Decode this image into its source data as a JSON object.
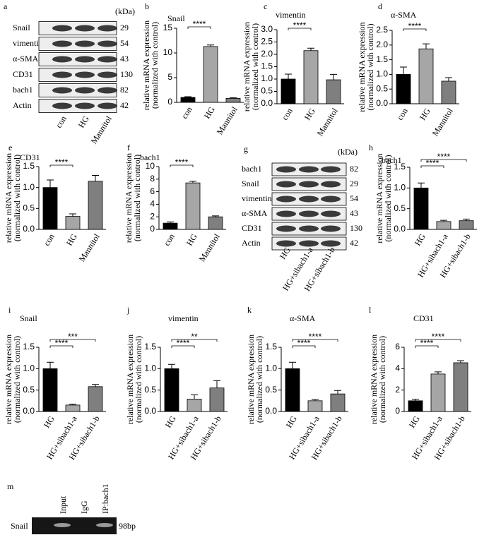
{
  "chart_data": [
    {
      "type": "bar",
      "panel": "b",
      "title": "Snail",
      "ylabel": [
        "relative mRNA expression",
        "(normalized with control)"
      ],
      "categories": [
        "con",
        "HG",
        "Mannitol"
      ],
      "values": [
        1.0,
        11.3,
        0.8
      ],
      "errors": [
        0.15,
        0.3,
        0.15
      ],
      "colors": [
        "#000000",
        "#a6a6a6",
        "#7f7f7f"
      ],
      "ylim": [
        0,
        15
      ],
      "yticks": [
        0,
        5,
        10,
        15
      ],
      "annotations": [
        "****"
      ]
    },
    {
      "type": "bar",
      "panel": "c",
      "title": "vimentin",
      "ylabel": [
        "relative mRNA expression",
        "(normalized with control)"
      ],
      "categories": [
        "con",
        "HG",
        "Mannitol"
      ],
      "values": [
        1.0,
        2.15,
        0.97
      ],
      "errors": [
        0.2,
        0.1,
        0.22
      ],
      "colors": [
        "#000000",
        "#a6a6a6",
        "#7f7f7f"
      ],
      "ylim": [
        0,
        3
      ],
      "yticks": [
        {
          "value": 0,
          "label": "0.0"
        },
        0.5,
        {
          "value": 1,
          "label": "1.0"
        },
        1.5,
        {
          "value": 2,
          "label": "2.0"
        },
        2.5,
        {
          "value": 3,
          "label": "3.0"
        }
      ],
      "annotations": [
        "****"
      ]
    },
    {
      "type": "bar",
      "panel": "d",
      "title": "α-SMA",
      "ylabel": [
        "relative mRNA expression",
        "(normalized with control)"
      ],
      "categories": [
        "con",
        "HG",
        "Mannitol"
      ],
      "values": [
        1.0,
        1.87,
        0.77
      ],
      "errors": [
        0.25,
        0.17,
        0.12
      ],
      "colors": [
        "#000000",
        "#a6a6a6",
        "#7f7f7f"
      ],
      "ylim": [
        0,
        2.5
      ],
      "yticks": [
        {
          "value": 0,
          "label": "0.0"
        },
        0.5,
        {
          "value": 1,
          "label": "1.0"
        },
        1.5,
        {
          "value": 2,
          "label": "2.0"
        },
        2.5
      ],
      "annotations": [
        "****"
      ]
    },
    {
      "type": "bar",
      "panel": "e",
      "title": "CD31",
      "ylabel": [
        "relative mRNA expression",
        "(normalized with control)"
      ],
      "categories": [
        "con",
        "HG",
        "Mannitol"
      ],
      "values": [
        1.0,
        0.31,
        1.15
      ],
      "errors": [
        0.18,
        0.06,
        0.14
      ],
      "colors": [
        "#000000",
        "#a6a6a6",
        "#7f7f7f"
      ],
      "ylim": [
        0,
        1.5
      ],
      "yticks": [
        {
          "value": 0,
          "label": "0.0"
        },
        0.5,
        {
          "value": 1,
          "label": "1.0"
        },
        1.5
      ],
      "annotations": [
        "****"
      ]
    },
    {
      "type": "bar",
      "panel": "f",
      "title": "bach1",
      "ylabel": [
        "relative mRNA expression",
        "(normalized with control)"
      ],
      "categories": [
        "con",
        "HG",
        "Mannitol"
      ],
      "values": [
        1.0,
        7.4,
        2.0
      ],
      "errors": [
        0.2,
        0.25,
        0.15
      ],
      "colors": [
        "#000000",
        "#a6a6a6",
        "#7f7f7f"
      ],
      "ylim": [
        0,
        10
      ],
      "yticks": [
        0,
        2,
        4,
        6,
        8,
        10
      ],
      "annotations": [
        "****"
      ]
    },
    {
      "type": "bar",
      "panel": "h",
      "title": "bach1",
      "ylabel": [
        "relative mRNA expression",
        "(normalized with control)"
      ],
      "categories": [
        "HG",
        "HG+sibach1-a",
        "HG+sibach1-b"
      ],
      "values": [
        1.0,
        0.19,
        0.21
      ],
      "errors": [
        0.12,
        0.03,
        0.04
      ],
      "colors": [
        "#000000",
        "#a6a6a6",
        "#7f7f7f"
      ],
      "ylim": [
        0,
        1.5
      ],
      "yticks": [
        {
          "value": 0,
          "label": "0.0"
        },
        0.5,
        {
          "value": 1,
          "label": "1.0"
        },
        1.5
      ],
      "annotations": [
        "****",
        "****"
      ]
    },
    {
      "type": "bar",
      "panel": "i",
      "title": "Snail",
      "ylabel": [
        "relative mRNA expression",
        "(normalized with control)"
      ],
      "categories": [
        "HG",
        "HG+sibach1-a",
        "HG+sibach1-b"
      ],
      "values": [
        1.0,
        0.15,
        0.58
      ],
      "errors": [
        0.15,
        0.02,
        0.05
      ],
      "colors": [
        "#000000",
        "#a6a6a6",
        "#7f7f7f"
      ],
      "ylim": [
        0,
        1.5
      ],
      "yticks": [
        {
          "value": 0,
          "label": "0.0"
        },
        0.5,
        {
          "value": 1,
          "label": "1.0"
        },
        1.5
      ],
      "annotations": [
        "****",
        "***"
      ]
    },
    {
      "type": "bar",
      "panel": "j",
      "title": "vimentin",
      "ylabel": [
        "relative mRNA expression",
        "(normalized with control)"
      ],
      "categories": [
        "HG",
        "HG+sibach1-a",
        "HG+sibach1-b"
      ],
      "values": [
        1.0,
        0.29,
        0.55
      ],
      "errors": [
        0.1,
        0.1,
        0.17
      ],
      "colors": [
        "#000000",
        "#a6a6a6",
        "#7f7f7f"
      ],
      "ylim": [
        0,
        1.5
      ],
      "yticks": [
        {
          "value": 0,
          "label": "0.0"
        },
        0.5,
        {
          "value": 1,
          "label": "1.0"
        },
        1.5
      ],
      "annotations": [
        "****",
        "**"
      ]
    },
    {
      "type": "bar",
      "panel": "k",
      "title": "α-SMA",
      "ylabel": [
        "relative mRNA expression",
        "(normalized with control)"
      ],
      "categories": [
        "HG",
        "HG+sibach1-a",
        "HG+sibach1-b"
      ],
      "values": [
        1.0,
        0.25,
        0.41
      ],
      "errors": [
        0.15,
        0.03,
        0.08
      ],
      "colors": [
        "#000000",
        "#a6a6a6",
        "#7f7f7f"
      ],
      "ylim": [
        0,
        1.5
      ],
      "yticks": [
        {
          "value": 0,
          "label": "0.0"
        },
        0.5,
        {
          "value": 1,
          "label": "1.0"
        },
        1.5
      ],
      "annotations": [
        "****",
        "****"
      ]
    },
    {
      "type": "bar",
      "panel": "l",
      "title": "CD31",
      "ylabel": [
        "relative mRNA expression",
        "(normalized with control)"
      ],
      "categories": [
        "HG",
        "HG+sibach1-a",
        "HG+sibach1-b"
      ],
      "values": [
        1.0,
        3.5,
        4.55
      ],
      "errors": [
        0.15,
        0.2,
        0.2
      ],
      "colors": [
        "#000000",
        "#a6a6a6",
        "#7f7f7f"
      ],
      "ylim": [
        0,
        6
      ],
      "yticks": [
        0,
        2,
        4,
        6
      ],
      "annotations": [
        "****",
        "****"
      ]
    }
  ],
  "blots": [
    {
      "panel": "a",
      "unit": "(kDa)",
      "lanes": [
        "con",
        "HG",
        "Mannitol"
      ],
      "rows": [
        {
          "protein": "Snail",
          "kda": "29"
        },
        {
          "protein": "vimentin",
          "kda": "54"
        },
        {
          "protein": "α-SMA",
          "kda": "43"
        },
        {
          "protein": "CD31",
          "kda": "130"
        },
        {
          "protein": "bach1",
          "kda": "82"
        },
        {
          "protein": "Actin",
          "kda": "42"
        }
      ]
    },
    {
      "panel": "g",
      "unit": "(kDa)",
      "lanes": [
        "HG",
        "HG+sibach1-a",
        "HG+sibach1-b"
      ],
      "rows": [
        {
          "protein": "bach1",
          "kda": "82"
        },
        {
          "protein": "Snail",
          "kda": "29"
        },
        {
          "protein": "vimentin",
          "kda": "54"
        },
        {
          "protein": "α-SMA",
          "kda": "43"
        },
        {
          "protein": "CD31",
          "kda": "130"
        },
        {
          "protein": "Actin",
          "kda": "42"
        }
      ]
    }
  ],
  "gel": {
    "panel": "m",
    "lanes": [
      "Input",
      "IgG",
      "IP:bach1"
    ],
    "row": "Snail",
    "size": "98bp"
  }
}
